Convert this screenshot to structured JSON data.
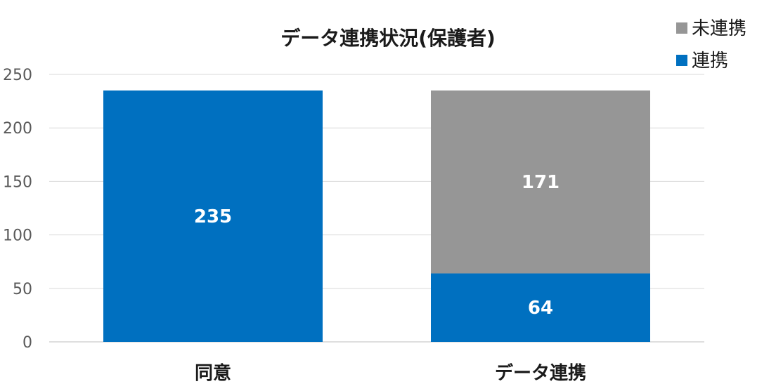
{
  "chart_data": {
    "type": "bar",
    "stacked": true,
    "title": "データ連携状況(保護者)",
    "categories": [
      "同意",
      "データ連携"
    ],
    "series": [
      {
        "name": "連携",
        "values": [
          235,
          64
        ],
        "labels": [
          "235",
          "64"
        ],
        "color": "#0070C0"
      },
      {
        "name": "未連携",
        "values": [
          0,
          171
        ],
        "labels": [
          "",
          "171"
        ],
        "color": "#969696"
      }
    ],
    "ylim": [
      0,
      250
    ],
    "yticks": [
      0,
      50,
      100,
      150,
      200,
      250
    ],
    "grid": true,
    "legend": "top-right",
    "legend_order": [
      "未連携",
      "連携"
    ]
  }
}
